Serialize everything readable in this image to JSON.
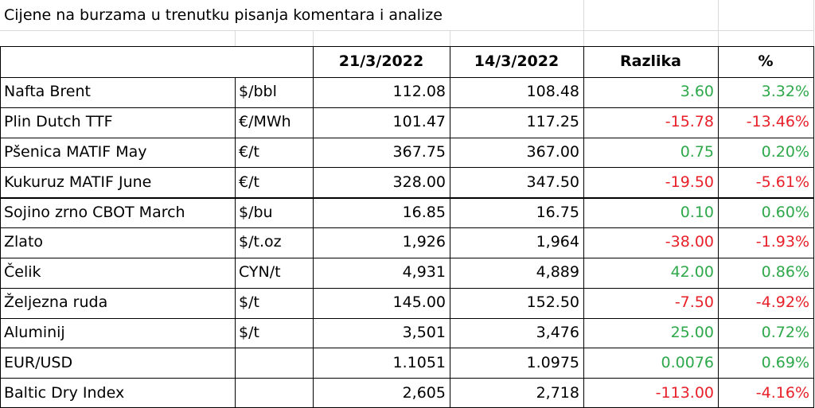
{
  "title": "Cijene na burzama u trenutku pisanja komentara i analize",
  "table": {
    "header": [
      "21/3/2022",
      "14/3/2022",
      "Razlika",
      "%"
    ],
    "rows": [
      [
        "Nafta Brent",
        "$/bbl",
        "112.08",
        "108.48",
        "3.60",
        "3.32%"
      ],
      [
        "Plin Dutch TTF",
        "€/MWh",
        "101.47",
        "117.25",
        "-15.78",
        "-13.46%"
      ],
      [
        "Pšenica MATIF May",
        "€/t",
        "367.75",
        "367.00",
        "0.75",
        "0.20%"
      ],
      [
        "Kukuruz MATIF June",
        "€/t",
        "328.00",
        "347.50",
        "-19.50",
        "-5.61%"
      ],
      [
        "Sojino zrno CBOT March",
        "$/bu",
        "16.85",
        "16.75",
        "0.10",
        "0.60%"
      ],
      [
        "Zlato",
        "$/t.oz",
        "1,926",
        "1,964",
        "-38.00",
        "-1.93%"
      ],
      [
        "Čelik",
        "CYN/t",
        "4,931",
        "4,889",
        "42.00",
        "0.86%"
      ],
      [
        "Željezna ruda",
        "$/t",
        "145.00",
        "152.50",
        "-7.50",
        "-4.92%"
      ],
      [
        "Aluminij",
        "$/t",
        "3,501",
        "3,476",
        "25.00",
        "0.72%"
      ],
      [
        "EUR/USD",
        null,
        "1.1051",
        "1.0975",
        "0.0076",
        "0.69%"
      ],
      [
        "Baltic Dry Index",
        null,
        "2,605",
        "2,718",
        "-113.00",
        "-4.16%"
      ]
    ],
    "colors": {
      "up": "#2ea84a",
      "down": "#e8202a"
    }
  }
}
